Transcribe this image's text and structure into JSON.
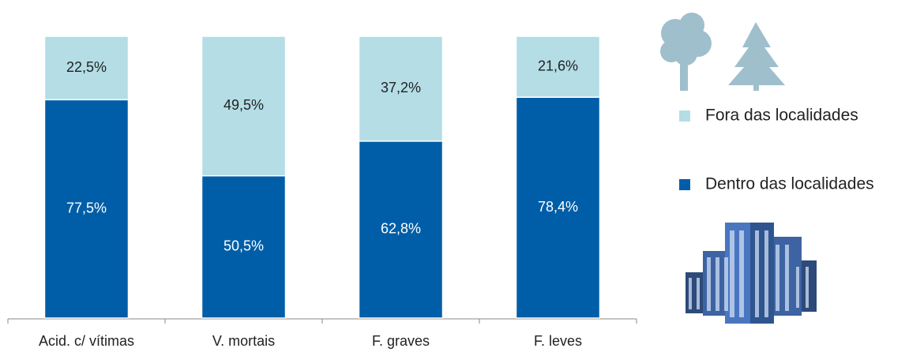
{
  "chart_data": {
    "type": "bar",
    "stacked": true,
    "categories": [
      "Acid. c/ vítimas",
      "V. mortais",
      "F. graves",
      "F. leves"
    ],
    "series": [
      {
        "name": "Dentro das localidades",
        "color": "#005ea8",
        "values": [
          77.5,
          50.5,
          62.8,
          78.4
        ],
        "value_labels": [
          "77,5%",
          "50,5%",
          "62,8%",
          "78,4%"
        ]
      },
      {
        "name": "Fora das localidades",
        "color": "#b4dde6",
        "values": [
          22.5,
          49.5,
          37.2,
          21.6
        ],
        "value_labels": [
          "22,5%",
          "49,5%",
          "37,2%",
          "21,6%"
        ]
      }
    ],
    "ylim": [
      0,
      100
    ],
    "legend": "right"
  }
}
